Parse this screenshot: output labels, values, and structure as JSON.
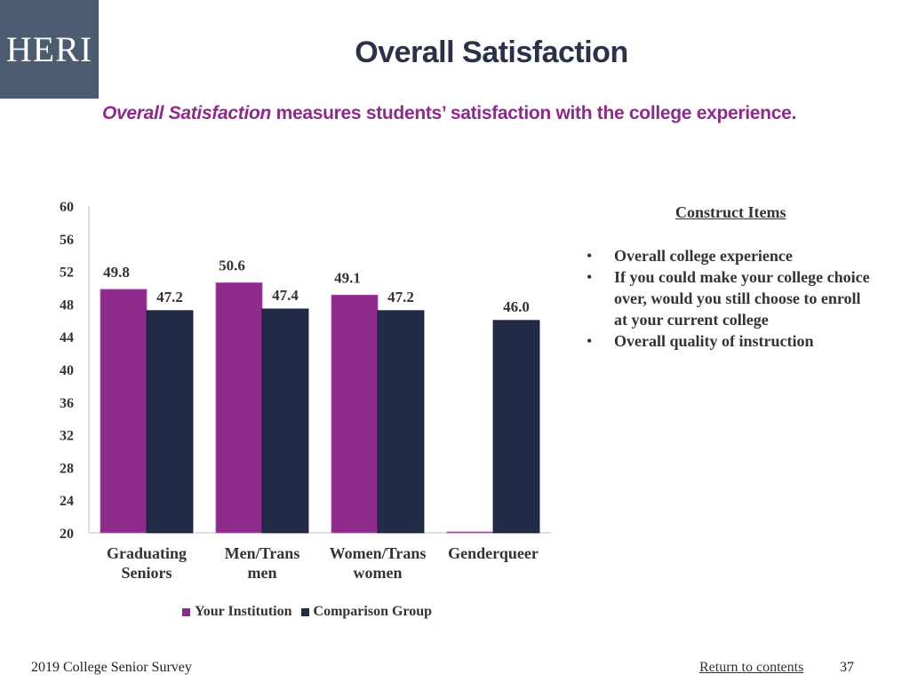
{
  "logo": {
    "text": "HERI"
  },
  "title": "Overall Satisfaction",
  "subtitle": {
    "emphasis": "Overall Satisfaction",
    "rest": " measures students’ satisfaction with the college experience."
  },
  "construct": {
    "heading": "Construct Items",
    "items": [
      "Overall college experience",
      "If you could make your college choice over, would you still choose to enroll at your current college",
      "Overall quality of instruction"
    ]
  },
  "footer": {
    "survey": "2019 College Senior Survey",
    "link": "Return to contents",
    "page": "37"
  },
  "colors": {
    "institution": "#8e2a8c",
    "comparison": "#222c47"
  },
  "chart_data": {
    "type": "bar",
    "title": "",
    "xlabel": "",
    "ylabel": "",
    "ylim": [
      20,
      60
    ],
    "yticks": [
      20,
      24,
      28,
      32,
      36,
      40,
      44,
      48,
      52,
      56,
      60
    ],
    "grid": false,
    "legend_position": "bottom",
    "categories": [
      [
        "Graduating",
        "Seniors"
      ],
      [
        "Men/Trans",
        "men"
      ],
      [
        "Women/Trans",
        "women"
      ],
      [
        "Genderqueer"
      ]
    ],
    "series": [
      {
        "name": "Your Institution",
        "values": [
          49.8,
          50.6,
          49.1,
          20.0
        ],
        "labels": [
          "49.8",
          "50.6",
          "49.1",
          ""
        ]
      },
      {
        "name": "Comparison Group",
        "values": [
          47.2,
          47.4,
          47.2,
          46.0
        ],
        "labels": [
          "47.2",
          "47.4",
          "47.2",
          "46.0"
        ]
      }
    ]
  }
}
